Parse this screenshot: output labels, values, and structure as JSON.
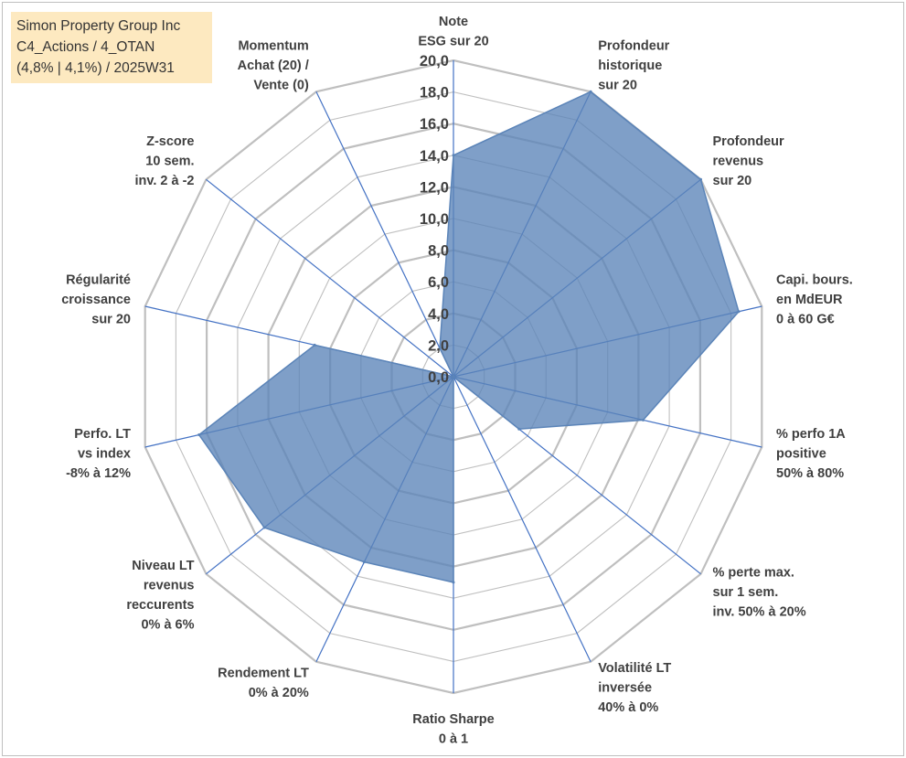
{
  "info": {
    "line1": "Simon Property Group Inc",
    "line2": "C4_Actions / 4_OTAN",
    "line3": "(4,8% | 4,1%) / 2025W31"
  },
  "colors": {
    "fill": "#5b84b8",
    "spoke": "#4472c4",
    "grid": "#bfbfbf",
    "text": "#404040",
    "info_bg": "#fde9c0"
  },
  "chart_data": {
    "type": "radar",
    "rmin": 0,
    "rmax": 20,
    "tick_step": 2,
    "tick_labels": [
      "0,0",
      "2,0",
      "4,0",
      "6,0",
      "8,0",
      "10,0",
      "12,0",
      "14,0",
      "16,0",
      "18,0",
      "20,0"
    ],
    "grid": true,
    "axes": [
      {
        "lines": [
          "Note",
          "ESG sur 20"
        ],
        "value": 14.0
      },
      {
        "lines": [
          "Profondeur",
          "historique",
          "sur 20"
        ],
        "value": 20.0
      },
      {
        "lines": [
          "Profondeur",
          "revenus",
          "sur 20"
        ],
        "value": 20.0
      },
      {
        "lines": [
          "Capi. bours.",
          "en MdEUR",
          "0 à 60 G€"
        ],
        "value": 18.5
      },
      {
        "lines": [
          "% perfo 1A",
          "positive",
          "50% à 80%"
        ],
        "value": 12.3
      },
      {
        "lines": [
          "% perte max.",
          "sur 1 sem.",
          "inv. 50% à 20%"
        ],
        "value": 5.3
      },
      {
        "lines": [
          "Volatilité LT",
          "inversée",
          "40% à 0%"
        ],
        "value": 0.0
      },
      {
        "lines": [
          "Ratio Sharpe",
          "0 à 1"
        ],
        "value": 13.0
      },
      {
        "lines": [
          "Rendement LT",
          "0% à 20%"
        ],
        "value": 13.0
      },
      {
        "lines": [
          "Niveau LT",
          "revenus",
          "reccurents",
          "0% à 6%"
        ],
        "value": 15.3
      },
      {
        "lines": [
          "Perfo. LT",
          "vs index",
          "-8% à 12%"
        ],
        "value": 16.5
      },
      {
        "lines": [
          "Régularité",
          "croissance",
          "sur 20"
        ],
        "value": 9.0
      },
      {
        "lines": [
          "Z-score",
          "10 sem.",
          "inv. 2 à -2"
        ],
        "value": 0.0
      },
      {
        "lines": [
          "Momentum",
          "Achat (20) /",
          "Vente (0)"
        ],
        "value": 2.0
      }
    ]
  }
}
